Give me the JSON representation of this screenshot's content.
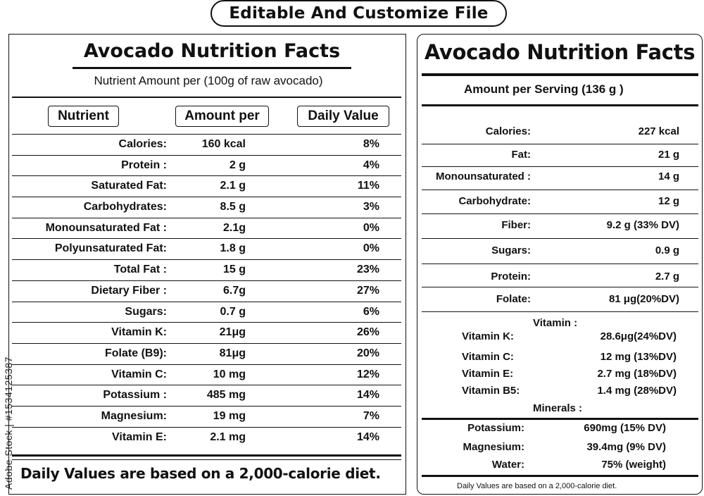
{
  "header": {
    "banner": "Editable And Customize File"
  },
  "watermark": "Adobe Stock | #1534125387",
  "left_panel": {
    "title": "Avocado Nutrition Facts",
    "subtitle": "Nutrient Amount per (100g of raw avocado)",
    "headers": {
      "nutrient": "Nutrient",
      "amount": "Amount per",
      "daily": "Daily Value"
    },
    "rows": [
      {
        "name": "Calories:",
        "amount": "160 kcal",
        "daily": "8%"
      },
      {
        "name": "Protein :",
        "amount": "2 g",
        "daily": "4%"
      },
      {
        "name": "Saturated Fat:",
        "amount": "2.1 g",
        "daily": "11%"
      },
      {
        "name": "Carbohydrates:",
        "amount": "8.5 g",
        "daily": "3%"
      },
      {
        "name": "Monounsaturated Fat :",
        "amount": "2.1g",
        "daily": "0%"
      },
      {
        "name": "Polyunsaturated Fat:",
        "amount": "1.8 g",
        "daily": "0%"
      },
      {
        "name": "Total Fat :",
        "amount": "15 g",
        "daily": "23%"
      },
      {
        "name": "Dietary Fiber :",
        "amount": "6.7g",
        "daily": "27%"
      },
      {
        "name": "Sugars:",
        "amount": "0.7 g",
        "daily": "6%"
      },
      {
        "name": "Vitamin K:",
        "amount": "21μg",
        "daily": "26%"
      },
      {
        "name": "Folate (B9):",
        "amount": "81μg",
        "daily": "20%"
      },
      {
        "name": "Vitamin C:",
        "amount": "10 mg",
        "daily": "12%"
      },
      {
        "name": "Potassium :",
        "amount": "485 mg",
        "daily": "14%"
      },
      {
        "name": "Magnesium:",
        "amount": "19 mg",
        "daily": "7%"
      },
      {
        "name": "Vitamin E:",
        "amount": "2.1 mg",
        "daily": "14%"
      }
    ],
    "footer": "Daily Values are based on a 2,000-calorie diet."
  },
  "right_panel": {
    "title": "Avocado Nutrition Facts",
    "serving": "Amount per Serving (136 g )",
    "rows": [
      {
        "name": "Calories:",
        "value": "227 kcal"
      },
      {
        "name": "Fat:",
        "value": "21 g"
      },
      {
        "name": "Monounsaturated :",
        "value": "14 g"
      },
      {
        "name": "Carbohydrate:",
        "value": "12 g"
      },
      {
        "name": "Fiber:",
        "value": "9.2 g (33% DV)"
      },
      {
        "name": "Sugars:",
        "value": "0.9 g"
      },
      {
        "name": "Protein:",
        "value": "2.7 g"
      },
      {
        "name": "Folate:",
        "value": "81 μg(20%DV)"
      }
    ],
    "vitamin_label": "Vitamin :",
    "vitamins": [
      {
        "name": "Vitamin K:",
        "value": "28.6μg(24%DV)"
      },
      {
        "name": "Vitamin C:",
        "value": "12 mg (13%DV)"
      },
      {
        "name": "Vitamin E:",
        "value": "2.7 mg (18%DV)"
      },
      {
        "name": "Vitamin B5:",
        "value": "1.4 mg (28%DV)"
      }
    ],
    "minerals_label": "Minerals :",
    "minerals": [
      {
        "name": "Potassium:",
        "value": "690mg (15% DV)"
      },
      {
        "name": "Magnesium:",
        "value": "39.4mg (9% DV)"
      },
      {
        "name": "Water:",
        "value": "75% (weight)"
      }
    ],
    "footer": "Daily Values are based on a 2,000-calorie diet."
  }
}
